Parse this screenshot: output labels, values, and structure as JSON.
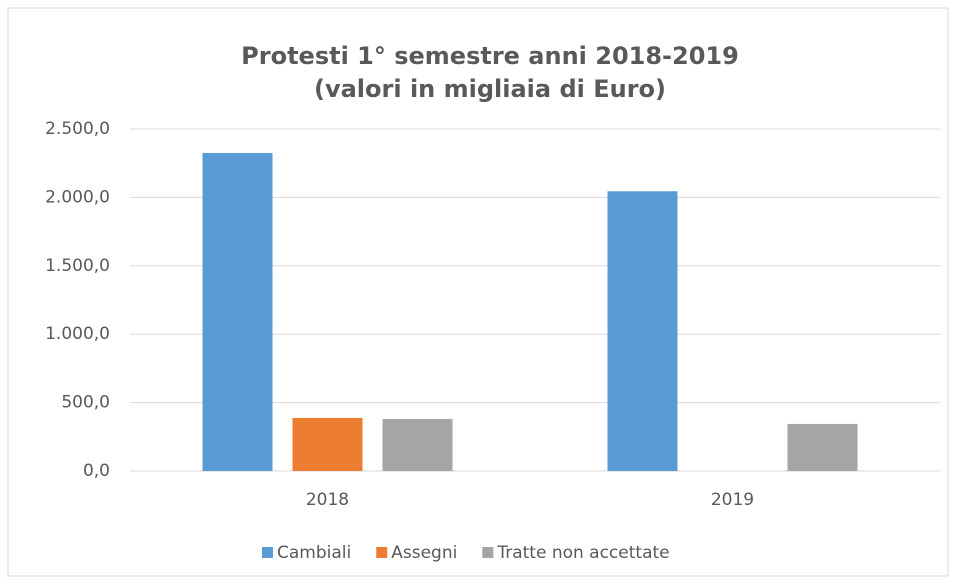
{
  "chart_data": {
    "type": "bar",
    "title": "Protesti  1° semestre anni 2018-2019",
    "subtitle": "(valori in migliaia di Euro)",
    "categories": [
      "2018",
      "2019"
    ],
    "series": [
      {
        "name": "Cambiali",
        "color": "#5b9bd5",
        "values": [
          2325,
          2045
        ]
      },
      {
        "name": "Assegni",
        "color": "#ed7d31",
        "values": [
          388,
          0
        ]
      },
      {
        "name": "Tratte non accettate",
        "color": "#a5a5a5",
        "values": [
          380,
          344
        ]
      }
    ],
    "ylim": [
      0,
      2500
    ],
    "yticks": [
      {
        "value": 0,
        "label": "0,0"
      },
      {
        "value": 500,
        "label": "500,0"
      },
      {
        "value": 1000,
        "label": "1.000,0"
      },
      {
        "value": 1500,
        "label": "1.500,0"
      },
      {
        "value": 2000,
        "label": "2.000,0"
      },
      {
        "value": 2500,
        "label": "2.500,0"
      }
    ],
    "grid": true,
    "legend": "bottom"
  }
}
